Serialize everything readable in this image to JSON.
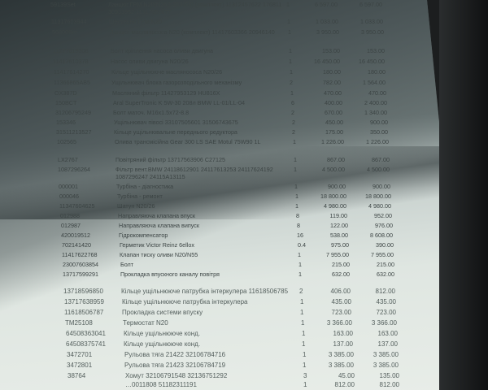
{
  "document": {
    "columns": [
      "code",
      "description",
      "qty",
      "price",
      "total"
    ],
    "rows": [
      {
        "code": "59139Set",
        "description": "Ланцюг ГРМ N20(N26/N20/N55) (комплект) 11312457622 176811 30933952 11317592877",
        "qty": "1",
        "price": "6 597.00",
        "total": "6 597.00"
      },
      {
        "code": "11317603944",
        "description": "Шестерня ГРМ N20",
        "qty": "1",
        "price": "1 033.00",
        "total": "1 033.00"
      },
      {
        "code": "56800Set",
        "description": "Ланцюг маслянососа N20 (комплект) 11417603366 20946140",
        "qty": "1",
        "price": "3 950.00",
        "total": "3 950.00"
      },
      {
        "code": "11277619308",
        "description": "Болт кріплення насоса оливи двигуна",
        "qty": "1",
        "price": "153.00",
        "total": "153.00"
      },
      {
        "code": "11417610378",
        "description": "Насос оливи двигуна N20/26",
        "qty": "1",
        "price": "16 450.00",
        "total": "16 450.00"
      },
      {
        "code": "11417614270",
        "description": "Кільце ущільнююче маслянососа N20/26",
        "qty": "1",
        "price": "180.00",
        "total": "180.00"
      },
      {
        "code": "11366865AB5",
        "description": "Ущільнювач блока газорозподільного механізму",
        "qty": "2",
        "price": "782.00",
        "total": "1 564.00"
      },
      {
        "code": "OX387D",
        "description": "Масляний фільтр 11427953129 HU816X",
        "qty": "1",
        "price": "470.00",
        "total": "470.00"
      },
      {
        "code": "150BCT",
        "description": "Aral SuperTronic K 5W-30 208л BMW LL-01/LL-04",
        "qty": "6",
        "price": "400.00",
        "total": "2 400.00"
      },
      {
        "code": "31206795249",
        "description": "Болт маточ. M16x1.5x72-8.8",
        "qty": "2",
        "price": "670.00",
        "total": "1 340.00"
      },
      {
        "code": "153346",
        "description": "Ущільнювач півосі 33107505601 31506743675",
        "qty": "2",
        "price": "450.00",
        "total": "900.00"
      },
      {
        "code": "31511213527",
        "description": "Кільце ущільнювальне переднього редуктора",
        "qty": "2",
        "price": "175.00",
        "total": "350.00"
      },
      {
        "code": "102565",
        "description": "Олива трансмісійна Gear 300 LS SAE Motul 75W90 1L",
        "qty": "1",
        "price": "1 226.00",
        "total": "1 226.00"
      },
      {
        "code": "LX2767",
        "description": "Повітряний фільтр 13717563906 C27125",
        "qty": "1",
        "price": "867.00",
        "total": "867.00"
      },
      {
        "code": "1087296264",
        "description": "Фільтр вент.BMW 24118612901 24117613253 24117624192 1087296247 24115A13115",
        "qty": "1",
        "price": "4 500.00",
        "total": "4 500.00"
      },
      {
        "code": "000001",
        "description": "Турбіна - діагностика",
        "qty": "1",
        "price": "900.00",
        "total": "900.00"
      },
      {
        "code": "000046",
        "description": "Турбіна - ремонт",
        "qty": "1",
        "price": "18 800.00",
        "total": "18 800.00"
      },
      {
        "code": "11347604625",
        "description": "Шатун N20/26",
        "qty": "1",
        "price": "4 980.00",
        "total": "4 980.00"
      },
      {
        "code": "012988",
        "description": "Направляюча клапана впуск",
        "qty": "8",
        "price": "119.00",
        "total": "952.00"
      },
      {
        "code": "012987",
        "description": "Направляюча клапана випуск",
        "qty": "8",
        "price": "122.00",
        "total": "976.00"
      },
      {
        "code": "420019512",
        "description": "Гідрокомпенсатор",
        "qty": "16",
        "price": "538.00",
        "total": "8 608.00"
      },
      {
        "code": "702141420",
        "description": "Герметик Victor Reinz 6ellox",
        "qty": "0.4",
        "price": "975.00",
        "total": "390.00"
      },
      {
        "code": "11417622768",
        "description": "Клапан тиску оливи N20/N55",
        "qty": "1",
        "price": "7 955.00",
        "total": "7 955.00"
      },
      {
        "code": "23007603854",
        "description": "Болт",
        "qty": "1",
        "price": "215.00",
        "total": "215.00"
      },
      {
        "code": "13717599291",
        "description": "Прокладка впускного каналу повітря",
        "qty": "1",
        "price": "632.00",
        "total": "632.00"
      },
      {
        "code": "13718596850",
        "description": "Кільце ущільнююче патрубка інтеркулера 11618506785",
        "qty": "2",
        "price": "406.00",
        "total": "812.00"
      },
      {
        "code": "13717638959",
        "description": "Кільце ущільнююче патрубка інтеркулера",
        "qty": "1",
        "price": "435.00",
        "total": "435.00"
      },
      {
        "code": "11618506787",
        "description": "Прокладка системи впуску",
        "qty": "1",
        "price": "723.00",
        "total": "723.00"
      },
      {
        "code": "TM25108",
        "description": "Термостат N20",
        "qty": "1",
        "price": "3 366.00",
        "total": "3 366.00"
      },
      {
        "code": "64508363041",
        "description": "Кільце ущільнююче конд.",
        "qty": "1",
        "price": "163.00",
        "total": "163.00"
      },
      {
        "code": "64508375741",
        "description": "Кільце ущільнююче конд.",
        "qty": "1",
        "price": "137.00",
        "total": "137.00"
      },
      {
        "code": "3472701",
        "description": "Рульова тяга 21422 32106784716",
        "qty": "1",
        "price": "3 385.00",
        "total": "3 385.00"
      },
      {
        "code": "3472801",
        "description": "Рульова тяга 21423 32106784719",
        "qty": "1",
        "price": "3 385.00",
        "total": "3 385.00"
      },
      {
        "code": "38764",
        "description": "Хомут 32106791548 32136751292",
        "qty": "3",
        "price": "45.00",
        "total": "135.00"
      },
      {
        "code": "",
        "description": "…0011808 51182311191",
        "qty": "1",
        "price": "812.00",
        "total": "812.00"
      }
    ]
  }
}
